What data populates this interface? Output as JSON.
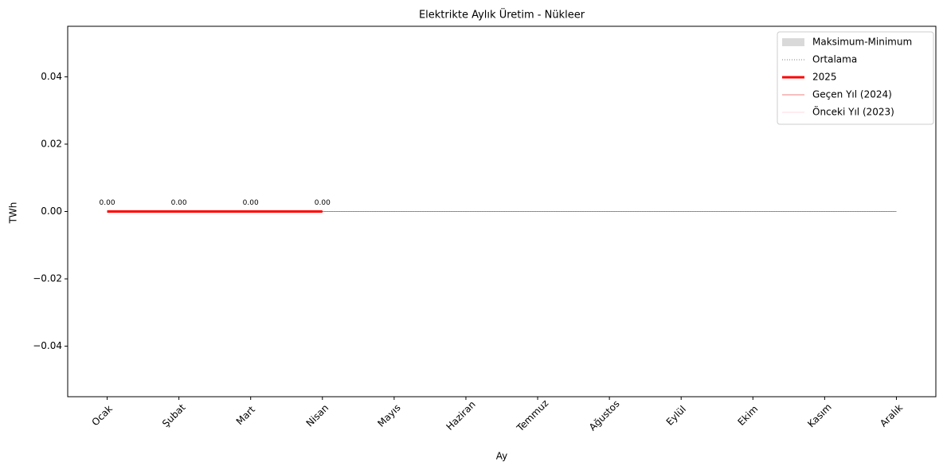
{
  "chart_data": {
    "type": "line",
    "title": "Elektrikte Aylık Üretim - Nükleer",
    "x_label": "Ay",
    "y_label": "TWh",
    "categories": [
      "Ocak",
      "Şubat",
      "Mart",
      "Nisan",
      "Mayıs",
      "Haziran",
      "Temmuz",
      "Ağustos",
      "Eylül",
      "Ekim",
      "Kasım",
      "Aralık"
    ],
    "band": {
      "name": "Maksimum-Minimum",
      "color": "#d9d9d9",
      "upper": [
        0,
        0,
        0,
        0,
        0,
        0,
        0,
        0,
        0,
        0,
        0,
        0
      ],
      "lower": [
        0,
        0,
        0,
        0,
        0,
        0,
        0,
        0,
        0,
        0,
        0,
        0
      ]
    },
    "series": [
      {
        "name": "Ortalama",
        "color": "#808080",
        "width": 1,
        "dash": "1,2",
        "values": [
          0,
          0,
          0,
          0,
          0,
          0,
          0,
          0,
          0,
          0,
          0,
          0
        ]
      },
      {
        "name": "2025",
        "color": "#ff0000",
        "width": 3,
        "values": [
          0,
          0,
          0,
          0,
          null,
          null,
          null,
          null,
          null,
          null,
          null,
          null
        ],
        "value_labels": [
          "0.00",
          "0.00",
          "0.00",
          "0.00",
          null,
          null,
          null,
          null,
          null,
          null,
          null,
          null
        ]
      },
      {
        "name": "Geçen Yıl (2024)",
        "color": "#e00000",
        "width": 0.6,
        "values": [
          0,
          0,
          0,
          0,
          0,
          0,
          0,
          0,
          0,
          0,
          0,
          0
        ]
      },
      {
        "name": "Önceki Yıl (2023)",
        "color": "#ffb6c1",
        "width": 0.6,
        "values": [
          0,
          0,
          0,
          0,
          0,
          0,
          0,
          0,
          0,
          0,
          0,
          0
        ]
      }
    ],
    "ylim": [
      -0.055,
      0.055
    ],
    "yticks": [
      {
        "value": -0.04,
        "label": "−0.04"
      },
      {
        "value": -0.02,
        "label": "−0.02"
      },
      {
        "value": 0,
        "label": "0.00"
      },
      {
        "value": 0.02,
        "label": "0.02"
      },
      {
        "value": 0.04,
        "label": "0.04"
      }
    ],
    "legend": "upper right",
    "grid": false
  }
}
